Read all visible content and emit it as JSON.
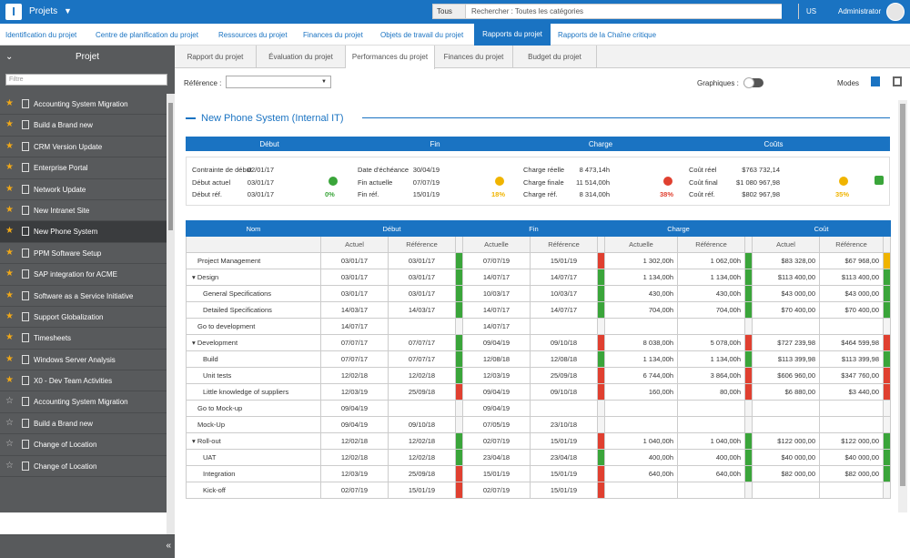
{
  "app": {
    "logo": "I",
    "module": "Projets",
    "lang": "US",
    "user": "Administrator"
  },
  "search": {
    "category": "Tous",
    "placeholder": "Rechercher : Toutes les catégories"
  },
  "nav": [
    "Identification du projet",
    "Centre de planification du projet",
    "Ressources du projet",
    "Finances du projet",
    "Objets de travail du projet",
    "Rapports du projet",
    "Rapports de la Chaîne critique"
  ],
  "sidebar": {
    "title": "Projet",
    "filter_placeholder": "Filtre",
    "items": [
      {
        "label": "Accounting System Migration",
        "fav": true
      },
      {
        "label": "Build a Brand new",
        "fav": true
      },
      {
        "label": "CRM Version Update",
        "fav": true
      },
      {
        "label": "Enterprise Portal",
        "fav": true
      },
      {
        "label": "Network Update",
        "fav": true
      },
      {
        "label": "New Intranet Site",
        "fav": true
      },
      {
        "label": "New Phone System",
        "fav": true,
        "selected": true
      },
      {
        "label": "PPM Software Setup",
        "fav": true
      },
      {
        "label": "SAP integration for ACME",
        "fav": true
      },
      {
        "label": "Software as a Service Initiative",
        "fav": true
      },
      {
        "label": "Support Globalization",
        "fav": true
      },
      {
        "label": "Timesheets",
        "fav": true
      },
      {
        "label": "Windows Server Analysis",
        "fav": true
      },
      {
        "label": "X0 - Dev Team Activities",
        "fav": true
      },
      {
        "label": "Accounting System Migration",
        "fav": false
      },
      {
        "label": "Build a Brand new",
        "fav": false
      },
      {
        "label": "Change of Location",
        "fav": false
      },
      {
        "label": "Change of Location",
        "fav": false
      }
    ]
  },
  "tabs": [
    "Rapport du projet",
    "Évaluation du projet",
    "Performances du projet",
    "Finances du projet",
    "Budget du projet"
  ],
  "toolbar": {
    "reference_label": "Référence :",
    "graphs_label": "Graphiques :",
    "modes_label": "Modes"
  },
  "project_title": "New Phone System (Internal IT)",
  "summary": {
    "headers": [
      "Début",
      "Fin",
      "Charge",
      "Coûts"
    ],
    "start": [
      [
        "Contrainte de début",
        "02/01/17"
      ],
      [
        "Début actuel",
        "03/01/17"
      ],
      [
        "Début réf.",
        "03/01/17"
      ]
    ],
    "start_pct": "0%",
    "end": [
      [
        "Date d'échéance",
        "30/04/19"
      ],
      [
        "Fin actuelle",
        "07/07/19"
      ],
      [
        "Fin réf.",
        "15/01/19"
      ]
    ],
    "end_pct": "18%",
    "charge": [
      [
        "Charge réelle",
        "8 473,14h"
      ],
      [
        "Charge finale",
        "11 514,00h"
      ],
      [
        "Charge réf.",
        "8 314,00h"
      ]
    ],
    "charge_pct": "38%",
    "cost": [
      [
        "Coût réel",
        "$763 732,14"
      ],
      [
        "Coût final",
        "$1 080 967,98"
      ],
      [
        "Coût réf.",
        "$802 967,98"
      ]
    ],
    "cost_pct": "35%",
    "colors": {
      "green": "#3aa53a",
      "amber": "#f0b400",
      "red": "#e04030"
    }
  },
  "grid": {
    "group_headers": [
      "Nom",
      "Début",
      "Fin",
      "Charge",
      "Coût"
    ],
    "sub_headers": [
      "Actuel",
      "Référence",
      "Actuelle",
      "Référence",
      "Actuelle",
      "Référence",
      "Actuel",
      "Référence"
    ],
    "rows": [
      {
        "name": "Project Management",
        "lvl": 1,
        "cells": [
          "03/01/17",
          "03/01/17",
          "07/07/19",
          "15/01/19",
          "1 302,00h",
          "1 062,00h",
          "$83 328,00",
          "$67 968,00"
        ],
        "sig": [
          "g",
          "r",
          "g",
          "y"
        ]
      },
      {
        "name": "Design",
        "lvl": 0,
        "exp": true,
        "cells": [
          "03/01/17",
          "03/01/17",
          "14/07/17",
          "14/07/17",
          "1 134,00h",
          "1 134,00h",
          "$113 400,00",
          "$113 400,00"
        ],
        "sig": [
          "g",
          "g",
          "g",
          "g"
        ]
      },
      {
        "name": "General Specifications",
        "lvl": 2,
        "cells": [
          "03/01/17",
          "03/01/17",
          "10/03/17",
          "10/03/17",
          "430,00h",
          "430,00h",
          "$43 000,00",
          "$43 000,00"
        ],
        "sig": [
          "g",
          "g",
          "g",
          "g"
        ]
      },
      {
        "name": "Detailed Specifications",
        "lvl": 2,
        "cells": [
          "14/03/17",
          "14/03/17",
          "14/07/17",
          "14/07/17",
          "704,00h",
          "704,00h",
          "$70 400,00",
          "$70 400,00"
        ],
        "sig": [
          "g",
          "g",
          "g",
          "g"
        ]
      },
      {
        "name": "Go to development",
        "lvl": 1,
        "cells": [
          "14/07/17",
          "",
          "14/07/17",
          "",
          "",
          "",
          "",
          ""
        ],
        "sig": [
          "",
          "",
          "",
          ""
        ]
      },
      {
        "name": "Development",
        "lvl": 0,
        "exp": true,
        "cells": [
          "07/07/17",
          "07/07/17",
          "09/04/19",
          "09/10/18",
          "8 038,00h",
          "5 078,00h",
          "$727 239,98",
          "$464 599,98"
        ],
        "sig": [
          "g",
          "r",
          "r",
          "r"
        ]
      },
      {
        "name": "Build",
        "lvl": 2,
        "cells": [
          "07/07/17",
          "07/07/17",
          "12/08/18",
          "12/08/18",
          "1 134,00h",
          "1 134,00h",
          "$113 399,98",
          "$113 399,98"
        ],
        "sig": [
          "g",
          "g",
          "g",
          "g"
        ]
      },
      {
        "name": "Unit tests",
        "lvl": 2,
        "cells": [
          "12/02/18",
          "12/02/18",
          "12/03/19",
          "25/09/18",
          "6 744,00h",
          "3 864,00h",
          "$606 960,00",
          "$347 760,00"
        ],
        "sig": [
          "g",
          "r",
          "r",
          "r"
        ]
      },
      {
        "name": "Little knowledge of suppliers",
        "lvl": 2,
        "cells": [
          "12/03/19",
          "25/09/18",
          "09/04/19",
          "09/10/18",
          "160,00h",
          "80,00h",
          "$6 880,00",
          "$3 440,00"
        ],
        "sig": [
          "r",
          "r",
          "r",
          "r"
        ]
      },
      {
        "name": "Go to Mock-up",
        "lvl": 1,
        "cells": [
          "09/04/19",
          "",
          "09/04/19",
          "",
          "",
          "",
          "",
          ""
        ],
        "sig": [
          "",
          "",
          "",
          ""
        ]
      },
      {
        "name": "Mock-Up",
        "lvl": 1,
        "cells": [
          "09/04/19",
          "09/10/18",
          "07/05/19",
          "23/10/18",
          "",
          "",
          "",
          ""
        ],
        "sig": [
          "",
          "",
          "",
          ""
        ]
      },
      {
        "name": "Roll-out",
        "lvl": 0,
        "exp": true,
        "cells": [
          "12/02/18",
          "12/02/18",
          "02/07/19",
          "15/01/19",
          "1 040,00h",
          "1 040,00h",
          "$122 000,00",
          "$122 000,00"
        ],
        "sig": [
          "g",
          "r",
          "g",
          "g"
        ]
      },
      {
        "name": "UAT",
        "lvl": 2,
        "cells": [
          "12/02/18",
          "12/02/18",
          "23/04/18",
          "23/04/18",
          "400,00h",
          "400,00h",
          "$40 000,00",
          "$40 000,00"
        ],
        "sig": [
          "g",
          "g",
          "g",
          "g"
        ]
      },
      {
        "name": "Integration",
        "lvl": 2,
        "cells": [
          "12/03/19",
          "25/09/18",
          "15/01/19",
          "15/01/19",
          "640,00h",
          "640,00h",
          "$82 000,00",
          "$82 000,00"
        ],
        "sig": [
          "r",
          "r",
          "g",
          "g"
        ]
      },
      {
        "name": "Kick-off",
        "lvl": 2,
        "cells": [
          "02/07/19",
          "15/01/19",
          "02/07/19",
          "15/01/19",
          "",
          "",
          "",
          ""
        ],
        "sig": [
          "r",
          "r",
          "",
          ""
        ]
      }
    ]
  }
}
